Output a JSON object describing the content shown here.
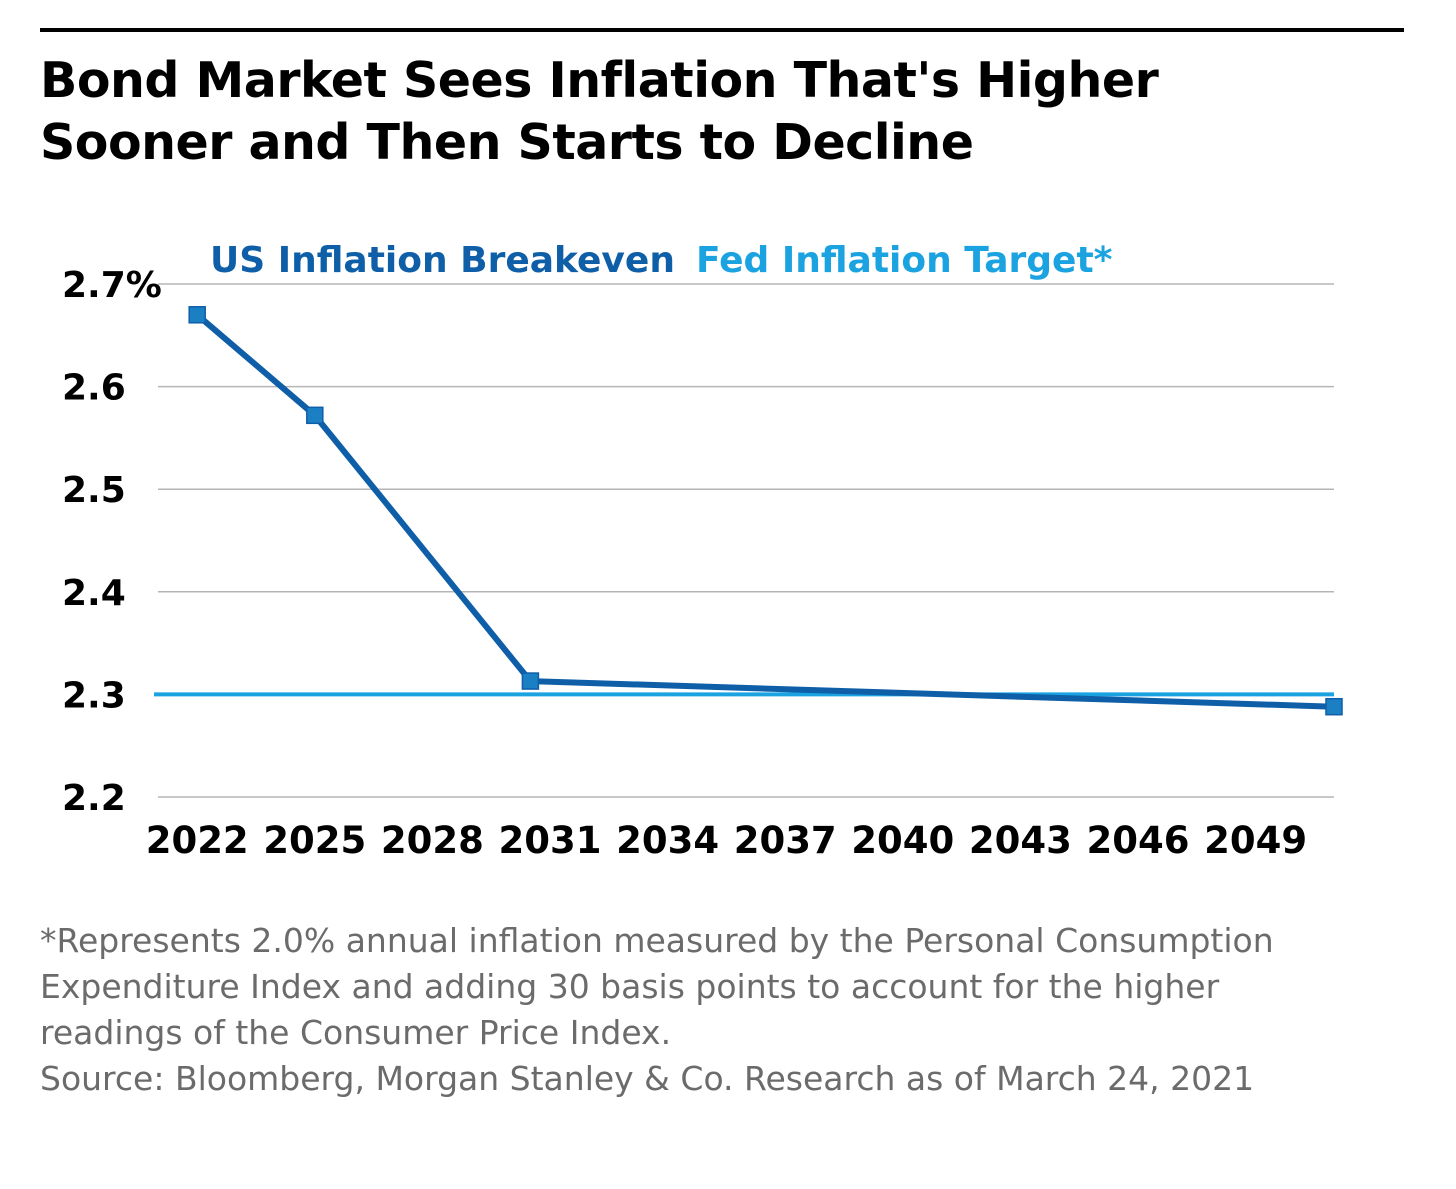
{
  "title": {
    "line1": "Bond Market Sees Inflation That's Higher",
    "line2": "Sooner and Then Starts to Decline"
  },
  "footnote": {
    "line1": "*Represents 2.0% annual inflation measured by the Personal Consumption",
    "line2": "Expenditure Index and adding 30 basis points to account for the higher",
    "line3": "readings of the Consumer Price Index.",
    "source": "Source: Bloomberg, Morgan Stanley & Co. Research as of March 24, 2021"
  },
  "colors": {
    "breakeven": "#0e5fa8",
    "target": "#1aa3e0",
    "grid": "#b5b5b5",
    "text": "#000000"
  },
  "chart_data": {
    "type": "line",
    "title": "Bond Market Sees Inflation That's Higher Sooner and Then Starts to Decline",
    "xlabel": "",
    "ylabel": "",
    "xlim": [
      2021,
      2051
    ],
    "ylim": [
      2.2,
      2.7
    ],
    "x_ticks": [
      2022,
      2025,
      2028,
      2031,
      2034,
      2037,
      2040,
      2043,
      2046,
      2049
    ],
    "x_tick_labels": [
      "2022",
      "2025",
      "2028",
      "2031",
      "2034",
      "2037",
      "2040",
      "2043",
      "2046",
      "2049"
    ],
    "y_ticks": [
      2.2,
      2.3,
      2.4,
      2.5,
      2.6,
      2.7
    ],
    "y_tick_labels": [
      "2.2",
      "2.3",
      "2.4",
      "2.5",
      "2.6",
      "2.7%"
    ],
    "grid": true,
    "legend_position": "top",
    "series": [
      {
        "name": "US Inflation Breakeven",
        "x": [
          2022,
          2025,
          2030.5,
          2051
        ],
        "y": [
          2.67,
          2.572,
          2.313,
          2.288
        ],
        "markers": true
      },
      {
        "name": "Fed Inflation Target*",
        "x": [
          2021,
          2051
        ],
        "y": [
          2.3,
          2.3
        ],
        "markers": false
      }
    ]
  }
}
